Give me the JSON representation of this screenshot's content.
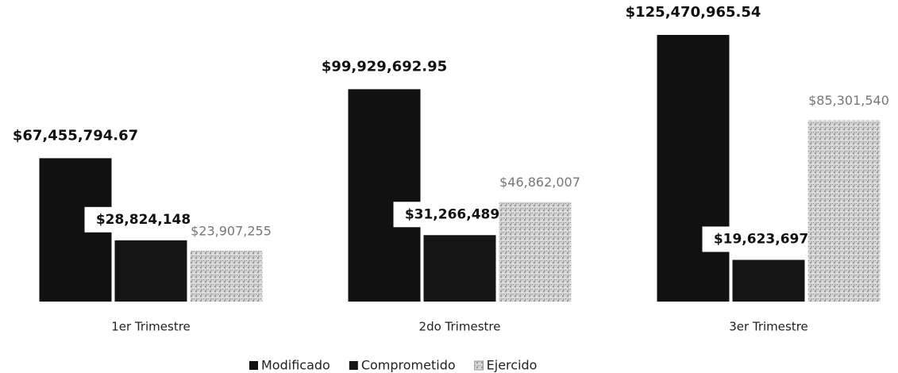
{
  "chart_data": {
    "type": "bar",
    "categories": [
      "1er Trimestre",
      "2do Trimestre",
      "3er Trimestre"
    ],
    "series": [
      {
        "name": "Modificado",
        "color": "#111111",
        "values": [
          67455794.67,
          99929692.95,
          125470965.54
        ],
        "value_labels": [
          "$67,455,794.67",
          "$99,929,692.95",
          "$125,470,965.54"
        ]
      },
      {
        "name": "Comprometido",
        "color": "#151515",
        "values": [
          28824148,
          31266489,
          19623697
        ],
        "value_labels": [
          "$28,824,148",
          "$31,266,489",
          "$19,623,697"
        ]
      },
      {
        "name": "Ejercido",
        "color": "#c8c8c8",
        "values": [
          23907255,
          46862007,
          85301540
        ],
        "value_labels": [
          "$23,907,255",
          "$46,862,007",
          "$85,301,540"
        ]
      }
    ],
    "legend": "bottom"
  }
}
